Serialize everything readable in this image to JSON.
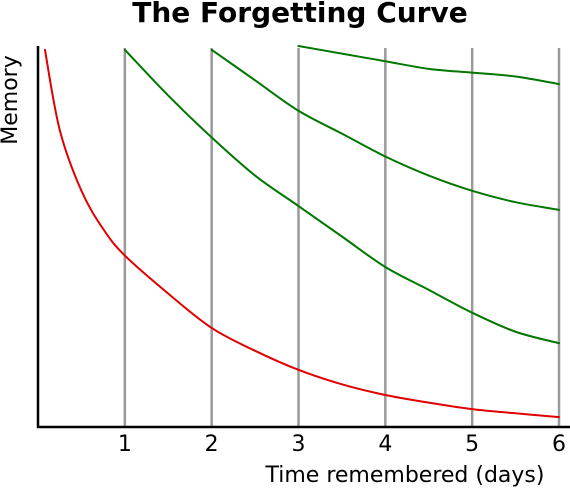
{
  "chart_data": {
    "type": "line",
    "title": "The Forgetting Curve",
    "xlabel": "Time remembered (days)",
    "ylabel": "Memory",
    "xlim": [
      0,
      6
    ],
    "ylim": [
      0,
      1
    ],
    "x_ticks": [
      "1",
      "2",
      "3",
      "4",
      "5",
      "6"
    ],
    "review_days": [
      1,
      2,
      3,
      4,
      5,
      6
    ],
    "grid": "vertical lines at each day",
    "legend": "none",
    "colors": {
      "forgetting": "#e00000",
      "review": "#007700",
      "gridline": "#9a9a9a",
      "axis": "#000000"
    },
    "series": [
      {
        "x": [
          0.08,
          0.25,
          0.5,
          0.75,
          1,
          1.5,
          2,
          2.5,
          3,
          3.5,
          4,
          4.5,
          5,
          5.5,
          6
        ],
        "values": [
          0.99,
          0.78,
          0.62,
          0.52,
          0.45,
          0.35,
          0.26,
          0.2,
          0.15,
          0.112,
          0.084,
          0.064,
          0.047,
          0.036,
          0.026
        ],
        "color": "#e00000"
      },
      {
        "x": [
          1,
          1.5,
          2,
          2.5,
          3,
          3.5,
          4,
          4.5,
          5,
          5.5,
          6
        ],
        "values": [
          0.99,
          0.87,
          0.76,
          0.66,
          0.58,
          0.5,
          0.42,
          0.36,
          0.3,
          0.25,
          0.22
        ],
        "color": "#007700"
      },
      {
        "x": [
          2,
          2.5,
          3,
          3.5,
          4,
          4.5,
          5,
          5.5,
          6
        ],
        "values": [
          0.99,
          0.91,
          0.83,
          0.77,
          0.71,
          0.66,
          0.62,
          0.59,
          0.57
        ],
        "color": "#007700"
      },
      {
        "x": [
          3,
          3.5,
          4,
          4.5,
          5,
          5.5,
          6
        ],
        "values": [
          1.0,
          0.98,
          0.96,
          0.94,
          0.93,
          0.92,
          0.9
        ],
        "color": "#007700"
      }
    ]
  }
}
